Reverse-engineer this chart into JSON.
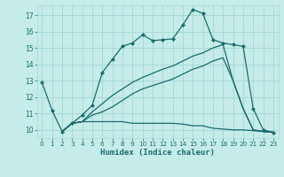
{
  "xlabel": "Humidex (Indice chaleur)",
  "ylabel": "",
  "bg_color": "#c5ece9",
  "grid_color": "#a8d8d5",
  "line_color": "#1a6b6b",
  "xlim": [
    -0.5,
    23.5
  ],
  "ylim": [
    9.5,
    17.6
  ],
  "xticks": [
    0,
    1,
    2,
    3,
    4,
    5,
    6,
    7,
    8,
    9,
    10,
    11,
    12,
    13,
    14,
    15,
    16,
    17,
    18,
    19,
    20,
    21,
    22,
    23
  ],
  "yticks": [
    10,
    11,
    12,
    13,
    14,
    15,
    16,
    17
  ],
  "line1_x": [
    0,
    1,
    2,
    3,
    4,
    5,
    6,
    7,
    8,
    9,
    10,
    11,
    12,
    13,
    14,
    15,
    16,
    17,
    18,
    19,
    20,
    21,
    22,
    23
  ],
  "line1_y": [
    12.9,
    11.2,
    9.9,
    10.4,
    10.9,
    11.5,
    13.5,
    14.3,
    15.1,
    15.3,
    15.8,
    15.45,
    15.5,
    15.55,
    16.4,
    17.35,
    17.1,
    15.5,
    15.3,
    15.2,
    15.1,
    11.3,
    10.0,
    9.85
  ],
  "line2_x": [
    2,
    3,
    4,
    5,
    6,
    7,
    8,
    9,
    10,
    11,
    12,
    13,
    14,
    15,
    16,
    17,
    18,
    19,
    20,
    21,
    22,
    23
  ],
  "line2_y": [
    9.9,
    10.4,
    10.5,
    10.5,
    10.5,
    10.5,
    10.5,
    10.4,
    10.4,
    10.4,
    10.4,
    10.4,
    10.35,
    10.25,
    10.25,
    10.1,
    10.05,
    10.0,
    10.0,
    9.95,
    9.9,
    9.85
  ],
  "line3_x": [
    2,
    3,
    4,
    5,
    6,
    7,
    8,
    9,
    10,
    11,
    12,
    13,
    14,
    15,
    16,
    17,
    18,
    19,
    20,
    21,
    22,
    23
  ],
  "line3_y": [
    9.9,
    10.4,
    10.5,
    10.9,
    11.1,
    11.4,
    11.8,
    12.2,
    12.5,
    12.7,
    12.9,
    13.1,
    13.4,
    13.7,
    13.9,
    14.2,
    14.4,
    13.0,
    11.3,
    10.0,
    9.9,
    9.85
  ],
  "line4_x": [
    2,
    3,
    4,
    5,
    6,
    7,
    8,
    9,
    10,
    11,
    12,
    13,
    14,
    15,
    16,
    17,
    18,
    19,
    20,
    21,
    22,
    23
  ],
  "line4_y": [
    9.9,
    10.4,
    10.5,
    11.1,
    11.6,
    12.1,
    12.5,
    12.9,
    13.2,
    13.45,
    13.7,
    13.9,
    14.2,
    14.5,
    14.7,
    15.0,
    15.2,
    13.0,
    11.3,
    10.0,
    9.9,
    9.85
  ]
}
